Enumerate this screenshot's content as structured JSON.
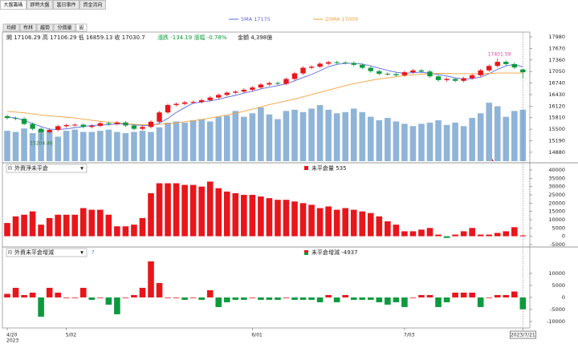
{
  "tabs": [
    "大盤籌碼",
    "即時大盤",
    "當日事件",
    "資金流向"
  ],
  "subtabs": [
    "均線",
    "布林",
    "趨勢",
    "分價量",
    "設"
  ],
  "info": [
    "開 17106.29 高 17106.29 低 16859.13 收 17030.7",
    "漲跌 -134.19 漲幅 -0.78%",
    "金額 4,398億"
  ],
  "chart_data": [
    {
      "type": "candlestick",
      "open": [
        15850,
        15800,
        15780,
        15640,
        15510,
        15420,
        15480,
        15580,
        15610,
        15620,
        15560,
        15590,
        15660,
        15640,
        15680,
        15600,
        15510,
        15560,
        15700,
        15950,
        16150,
        16180,
        16220,
        16230,
        16280,
        16350,
        16420,
        16480,
        16510,
        16560,
        16620,
        16700,
        16740,
        16720,
        16850,
        17000,
        17150,
        17180,
        17260,
        17300,
        17290,
        17280,
        17230,
        17150,
        17060,
        16990,
        16980,
        16950,
        17030,
        17080,
        17050,
        16920,
        16820,
        16850,
        16800,
        16870,
        16950,
        17080,
        17200,
        17310,
        17250,
        17106.29
      ],
      "high": [
        15890,
        15840,
        15820,
        15680,
        15550,
        15520,
        15620,
        15650,
        15660,
        15660,
        15630,
        15700,
        15700,
        15720,
        15720,
        15640,
        15600,
        15740,
        15990,
        16190,
        16220,
        16260,
        16270,
        16320,
        16390,
        16460,
        16520,
        16550,
        16600,
        16660,
        16740,
        16780,
        16780,
        16890,
        17040,
        17190,
        17220,
        17300,
        17340,
        17340,
        17330,
        17320,
        17270,
        17190,
        17100,
        17030,
        17020,
        17070,
        17120,
        17120,
        17090,
        16960,
        16890,
        16890,
        16910,
        16990,
        17120,
        17240,
        17401.59,
        17350,
        17290,
        17106.29
      ],
      "low": [
        15760,
        15740,
        15600,
        15470,
        15204.46,
        15380,
        15440,
        15540,
        15570,
        15520,
        15520,
        15550,
        15600,
        15600,
        15560,
        15470,
        15470,
        15520,
        15660,
        15910,
        16110,
        16140,
        16180,
        16190,
        16240,
        16310,
        16380,
        16440,
        16470,
        16520,
        16580,
        16660,
        16680,
        16680,
        16810,
        16960,
        17110,
        17140,
        17220,
        17250,
        17240,
        17190,
        17110,
        17020,
        16950,
        16940,
        16910,
        16910,
        16990,
        17010,
        16880,
        16780,
        16780,
        16760,
        16760,
        16830,
        16910,
        17040,
        17160,
        17210,
        17120,
        16859.13
      ],
      "close": [
        15800,
        15780,
        15640,
        15510,
        15420,
        15480,
        15580,
        15610,
        15620,
        15560,
        15590,
        15660,
        15640,
        15680,
        15600,
        15510,
        15560,
        15700,
        15950,
        16150,
        16180,
        16220,
        16230,
        16280,
        16350,
        16420,
        16480,
        16510,
        16560,
        16620,
        16700,
        16740,
        16720,
        16850,
        17000,
        17150,
        17180,
        17260,
        17300,
        17290,
        17280,
        17230,
        17150,
        17060,
        16990,
        16980,
        16950,
        17030,
        17080,
        17050,
        16920,
        16820,
        16850,
        16800,
        16870,
        16950,
        17080,
        17200,
        17310,
        17250,
        17160,
        17030.7
      ],
      "up_color": "#e8161b",
      "down_color": "#0c9a3e",
      "series": [
        {
          "name": "5MA 17175",
          "color": "#5b68e0",
          "values": [
            15830,
            15800,
            15740,
            15650,
            15570,
            15500,
            15490,
            15510,
            15540,
            15570,
            15600,
            15610,
            15620,
            15640,
            15640,
            15620,
            15600,
            15590,
            15660,
            15790,
            15950,
            16080,
            16200,
            16230,
            16260,
            16300,
            16360,
            16410,
            16470,
            16520,
            16580,
            16630,
            16670,
            16720,
            16800,
            16890,
            16970,
            17070,
            17180,
            17240,
            17270,
            17270,
            17250,
            17200,
            17140,
            17080,
            17030,
            17000,
            17020,
            17030,
            17000,
            16970,
            16930,
            16880,
            16850,
            16860,
            16900,
            16990,
            17110,
            17200,
            17240,
            17175
          ]
        },
        {
          "name": "20MA 17009",
          "color": "#f2a23c",
          "values": [
            15980,
            15960,
            15940,
            15910,
            15880,
            15860,
            15840,
            15820,
            15800,
            15770,
            15740,
            15710,
            15690,
            15670,
            15650,
            15630,
            15620,
            15620,
            15630,
            15650,
            15670,
            15700,
            15730,
            15760,
            15800,
            15840,
            15880,
            15930,
            15980,
            16040,
            16100,
            16160,
            16210,
            16260,
            16310,
            16370,
            16430,
            16490,
            16550,
            16610,
            16670,
            16720,
            16770,
            16810,
            16850,
            16880,
            16910,
            16940,
            16960,
            16980,
            16990,
            17000,
            17000,
            16990,
            16990,
            16990,
            16990,
            17000,
            17010,
            17010,
            17010,
            17009
          ]
        }
      ],
      "volume": [
        2600,
        2500,
        2800,
        2400,
        2700,
        2500,
        2100,
        2600,
        2700,
        2500,
        2500,
        2600,
        2700,
        2500,
        2400,
        2500,
        2600,
        2500,
        2900,
        3300,
        3400,
        3300,
        3500,
        3600,
        3400,
        3800,
        3900,
        4300,
        3800,
        4100,
        4600,
        4000,
        3600,
        4300,
        4400,
        4200,
        4500,
        4800,
        4400,
        4100,
        4200,
        4500,
        4200,
        3800,
        3500,
        3700,
        3400,
        3200,
        3000,
        3200,
        3300,
        3500,
        3100,
        3300,
        3000,
        3700,
        4100,
        5000,
        4700,
        3800,
        4300,
        4398
      ],
      "volume_color": "#8fb4d8",
      "volume_lim": [
        0,
        7000
      ],
      "low_label": "15204.46",
      "high_label": "17401.59",
      "ylim": [
        14640,
        18110
      ],
      "yticks": [
        17980,
        17670,
        17360,
        17050,
        16740,
        16430,
        16120,
        15810,
        15500,
        15190,
        14880
      ]
    },
    {
      "type": "bar",
      "title": "外資淨未平倉",
      "series": [
        {
          "name": "未平倉量 535",
          "color": "#e8161b",
          "negative_color": "#0c9a3e",
          "values": [
            8000,
            12000,
            13000,
            15000,
            7000,
            11000,
            13000,
            13000,
            13000,
            17000,
            16000,
            16000,
            13000,
            6000,
            6000,
            7000,
            11000,
            26000,
            32000,
            32000,
            32000,
            31000,
            31000,
            30000,
            33000,
            29000,
            27000,
            26000,
            25000,
            25000,
            24000,
            23000,
            22000,
            22000,
            21000,
            20000,
            19000,
            17000,
            18000,
            16000,
            17000,
            16000,
            15000,
            14000,
            12000,
            9000,
            7000,
            3000,
            3000,
            4000,
            5000,
            1000,
            -1000,
            1000,
            3000,
            5000,
            1000,
            1000,
            2000,
            3000,
            5472,
            535
          ]
        }
      ],
      "ylim": [
        -6000,
        43400
      ],
      "yticks": [
        40000,
        35000,
        30000,
        25000,
        20000,
        15000,
        10000,
        5000,
        0,
        -5000
      ]
    },
    {
      "type": "bar",
      "title": "外資未平倉增減",
      "help": "?",
      "series": [
        {
          "name": "未平倉增減 -4937",
          "color": "#e8161b",
          "negative_color": "#0c9a3e",
          "values": [
            1500,
            4000,
            1000,
            2000,
            -8000,
            4000,
            2000,
            0,
            0,
            4000,
            -1000,
            0,
            -3000,
            -7000,
            0,
            1000,
            4000,
            15000,
            6000,
            0,
            0,
            -1000,
            0,
            -1000,
            3000,
            -4000,
            -2000,
            -1000,
            -1000,
            0,
            -1000,
            -1000,
            -1000,
            0,
            -1000,
            -1000,
            -1000,
            -2000,
            1000,
            -2000,
            1000,
            -1000,
            -1000,
            -1000,
            -2000,
            -3000,
            -2000,
            -4000,
            0,
            1000,
            1000,
            -4000,
            -2000,
            2000,
            2000,
            2000,
            -4000,
            0,
            1000,
            1000,
            2472,
            -4937
          ]
        }
      ],
      "ylim": [
        -12700,
        20000
      ],
      "yticks": [
        10000,
        5000,
        0,
        -5000,
        -10000
      ],
      "categories": [
        "4/20",
        null,
        null,
        null,
        null,
        null,
        null,
        "5/02",
        null,
        null,
        null,
        null,
        null,
        null,
        null,
        null,
        null,
        null,
        null,
        null,
        null,
        null,
        null,
        null,
        null,
        null,
        null,
        null,
        null,
        "6/01",
        null,
        null,
        null,
        null,
        null,
        null,
        null,
        null,
        null,
        null,
        null,
        null,
        null,
        null,
        null,
        null,
        null,
        "7/03",
        null,
        null,
        null,
        null,
        null,
        null,
        null,
        null,
        null,
        null,
        null,
        null,
        null,
        "2023/7/21"
      ],
      "x_sublabel": "2023"
    }
  ]
}
